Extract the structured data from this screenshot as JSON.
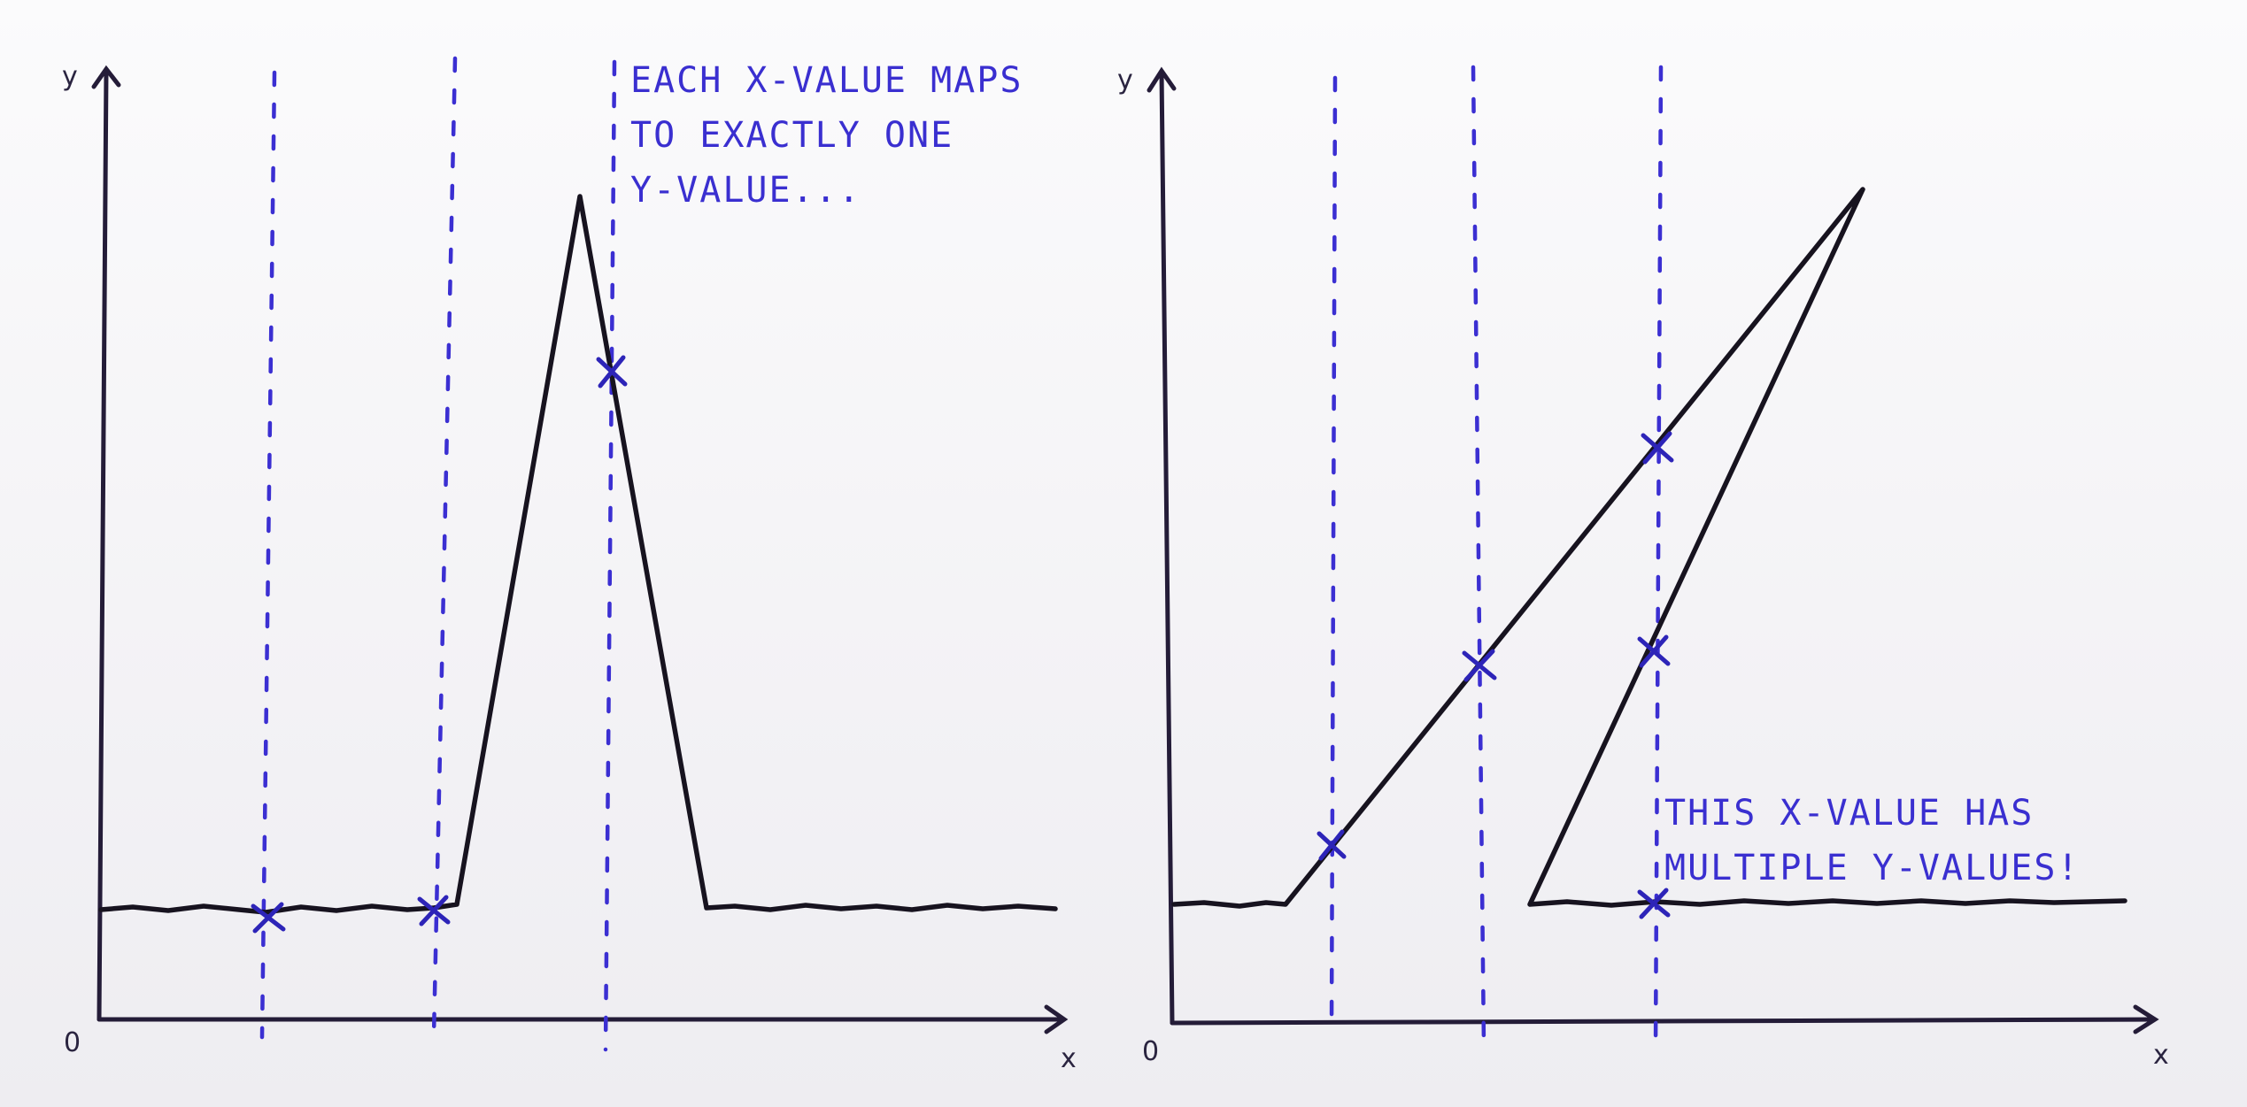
{
  "left_graph": {
    "origin_label": "0",
    "x_axis_label": "x",
    "y_axis_label": "y",
    "annotation": [
      "EACH X-VALUE MAPS",
      "TO EXACTLY ONE",
      "Y-VALUE..."
    ]
  },
  "right_graph": {
    "origin_label": "0",
    "x_axis_label": "x",
    "y_axis_label": "y",
    "annotation": [
      "THIS X-VALUE HAS",
      "MULTIPLE Y-VALUES!"
    ]
  },
  "colors": {
    "ink": "#17131f",
    "pen_blue": "#3a2fd0"
  }
}
